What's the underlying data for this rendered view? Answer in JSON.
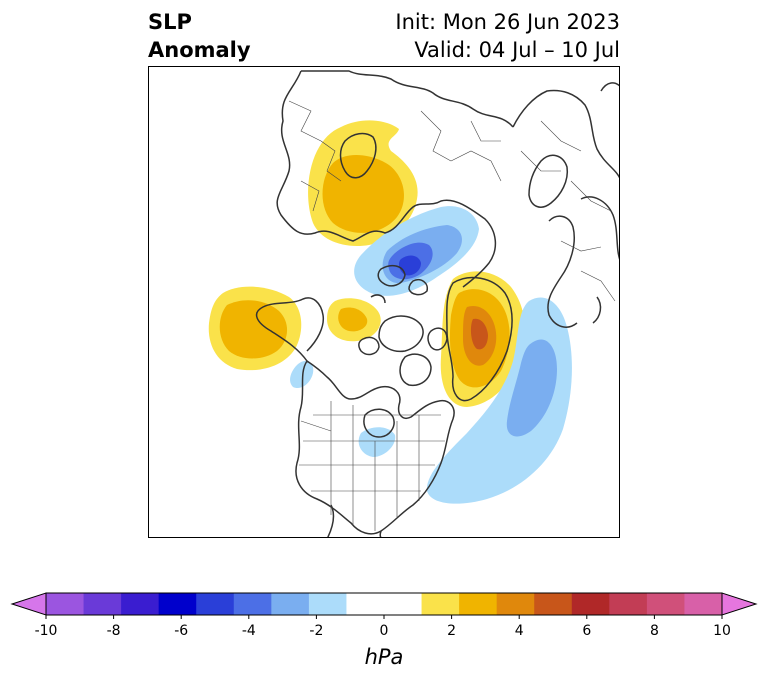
{
  "title": {
    "left_line1": "SLP",
    "left_line2": "Anomaly",
    "right_line1": "Init: Mon 26 Jun 2023",
    "right_line2": "Valid: 04 Jul – 10 Jul"
  },
  "map": {
    "projection": "north polar stereographic",
    "field": "sea level pressure anomaly",
    "anomaly_features": [
      {
        "name": "high-scandinavia-russia",
        "sign": "positive",
        "peak_hPa": 3
      },
      {
        "name": "high-alaska-pacific",
        "sign": "positive",
        "peak_hPa": 3
      },
      {
        "name": "high-beaufort",
        "sign": "positive",
        "peak_hPa": 3
      },
      {
        "name": "high-greenland",
        "sign": "positive",
        "peak_hPa": 5
      },
      {
        "name": "low-kara-barents",
        "sign": "negative",
        "peak_hPa": -6
      },
      {
        "name": "low-north-atlantic",
        "sign": "negative",
        "peak_hPa": -3
      },
      {
        "name": "low-hudson-east",
        "sign": "negative",
        "peak_hPa": -1
      },
      {
        "name": "low-pacific-small",
        "sign": "negative",
        "peak_hPa": -1
      }
    ]
  },
  "colorbar": {
    "label": "hPa",
    "ticks": [
      "-10",
      "-8",
      "-6",
      "-4",
      "-2",
      "0",
      "2",
      "4",
      "6",
      "8",
      "10"
    ],
    "colors": [
      "#9b55e0",
      "#6a3ad8",
      "#3a1dd0",
      "#0000cc",
      "#2a3fd8",
      "#4c6fe6",
      "#7aaef0",
      "#acdcfa",
      "#ffffff",
      "#ffffff",
      "#fae24a",
      "#f0b400",
      "#e0880c",
      "#c8561a",
      "#b02828",
      "#c23d55",
      "#d0507a",
      "#d860a8"
    ],
    "extend_low_color": "#d676ea",
    "extend_high_color": "#e676de"
  }
}
